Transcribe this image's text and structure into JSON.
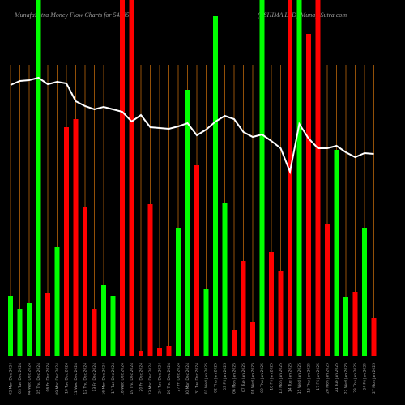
{
  "chart_data": {
    "type": "money-flow",
    "title": "MunafaSutra  Money Flow  Charts for 542856",
    "subtitle": "(ASHIMA LTD) MunafaSutra.com",
    "categories": [
      "02 Mon Dec 2024",
      "03 Tue Dec 2024",
      "04 Wed Dec 2024",
      "05 Thu Dec 2024",
      "06 Fri Dec 2024",
      "09 Mon Dec 2024",
      "10 Tue Dec 2024",
      "11 Wed Dec 2024",
      "12 Thu Dec 2024",
      "13 Fri Dec 2024",
      "16 Mon Dec 2024",
      "17 Tue Dec 2024",
      "18 Wed Dec 2024",
      "19 Thu Dec 2024",
      "20 Fri Dec 2024",
      "23 Mon Dec 2024",
      "24 Tue Dec 2024",
      "26 Thu Dec 2024",
      "27 Fri Dec 2024",
      "30 Mon Dec 2024",
      "31 Tue Dec 2024",
      "01 Wed Jan 2025",
      "02 Thu Jan 2025",
      "03 Fri Jan 2025",
      "06 Mon Jan 2025",
      "07 Tue Jan 2025",
      "08 Wed Jan 2025",
      "09 Thu Jan 2025",
      "10 Fri Jan 2025",
      "13 Mon Jan 2025",
      "14 Tue Jan 2025",
      "15 Wed Jan 2025",
      "16 Thu Jan 2025",
      "17 Fri Jan 2025",
      "20 Mon Jan 2025",
      "21 Tue Jan 2025",
      "22 Wed Jan 2025",
      "23 Thu Jan 2025",
      "24 Fri Jan 2025",
      "27 Mon Jan 2025"
    ],
    "series": [
      {
        "type": "bar",
        "values": [
          74,
          58,
          66,
          440,
          78,
          135,
          283,
          293,
          185,
          59,
          88,
          74,
          440,
          440,
          7,
          188,
          10,
          13,
          159,
          329,
          236,
          83,
          420,
          189,
          33,
          118,
          42,
          440,
          129,
          105,
          440,
          440,
          398,
          440,
          163,
          255,
          73,
          80,
          158,
          47
        ],
        "colors": [
          "#00ff00",
          "#00ff00",
          "#00ff00",
          "#00ff00",
          "#ff0000",
          "#00ff00",
          "#ff0000",
          "#ff0000",
          "#ff0000",
          "#ff0000",
          "#00ff00",
          "#00ff00",
          "#ff0000",
          "#ff0000",
          "#ff0000",
          "#ff0000",
          "#ff0000",
          "#ff0000",
          "#00ff00",
          "#00ff00",
          "#ff0000",
          "#00ff00",
          "#00ff00",
          "#00ff00",
          "#ff0000",
          "#ff0000",
          "#ff0000",
          "#00ff00",
          "#ff0000",
          "#ff0000",
          "#ff0000",
          "#00ff00",
          "#ff0000",
          "#ff0000",
          "#ff0000",
          "#00ff00",
          "#00ff00",
          "#ff0000",
          "#00ff00",
          "#ff0000"
        ]
      },
      {
        "type": "line",
        "color": "#ffffff",
        "values": [
          335,
          340,
          341,
          344,
          336,
          339,
          337,
          315,
          309,
          305,
          308,
          305,
          302,
          290,
          298,
          283,
          282,
          281,
          284,
          288,
          273,
          280,
          290,
          297,
          293,
          277,
          271,
          274,
          266,
          257,
          228,
          287,
          269,
          257,
          257,
          260,
          252,
          246,
          251,
          250
        ]
      }
    ],
    "ylim": [
      0,
      440
    ]
  }
}
